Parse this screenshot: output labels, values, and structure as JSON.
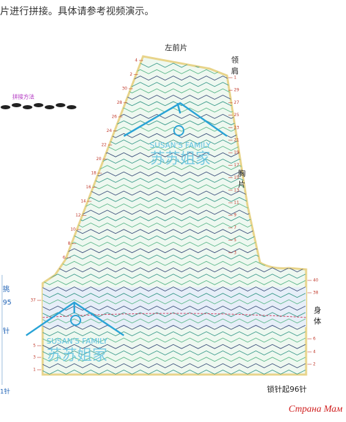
{
  "header": {
    "text": "片进行拼接。具体请参考视频演示。"
  },
  "join_method": "拼接方法",
  "side_note": {
    "pick": "挑",
    "count": "95",
    "stitch": "针",
    "bottom": "1针"
  },
  "diagram": {
    "title": "左前片",
    "neck_shoulder": [
      "领",
      "肩"
    ],
    "chest": [
      "胸",
      "片"
    ],
    "body": [
      "身",
      "体"
    ],
    "footer": "锁针起96针",
    "right_upper_rows": [
      "1",
      "29",
      "27",
      "25",
      "23",
      "21",
      "19",
      "17",
      "15",
      "13",
      "11",
      "9",
      "7",
      "5",
      "3"
    ],
    "left_upper_rows": [
      "4",
      "2",
      "30",
      "28",
      "26",
      "24",
      "22",
      "20",
      "18",
      "16",
      "14",
      "12",
      "10",
      "8",
      "6"
    ],
    "right_lower_rows": [
      "40",
      "38",
      "6",
      "4",
      "2"
    ],
    "left_lower_rows": [
      "37",
      "5",
      "3",
      "1"
    ]
  },
  "watermarks": [
    "SUSAN'S FAMILY",
    "苏苏姐家",
    "SUSAN'S FAMILY",
    "苏苏姐家",
    "Страна Мам"
  ]
}
